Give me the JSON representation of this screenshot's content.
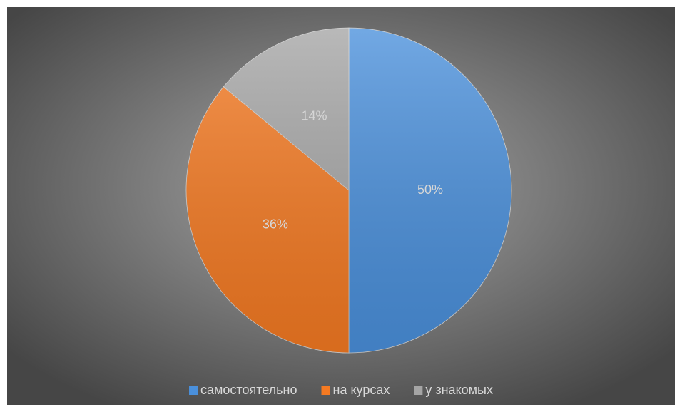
{
  "chart_data": {
    "type": "pie",
    "categories": [
      "самостоятельно",
      "на курсах",
      "у знакомых"
    ],
    "values": [
      50,
      36,
      14
    ],
    "value_labels": [
      "50%",
      "36%",
      "14%"
    ],
    "colors": [
      "#4a90dc",
      "#f57a22",
      "#a5a5a5"
    ]
  }
}
